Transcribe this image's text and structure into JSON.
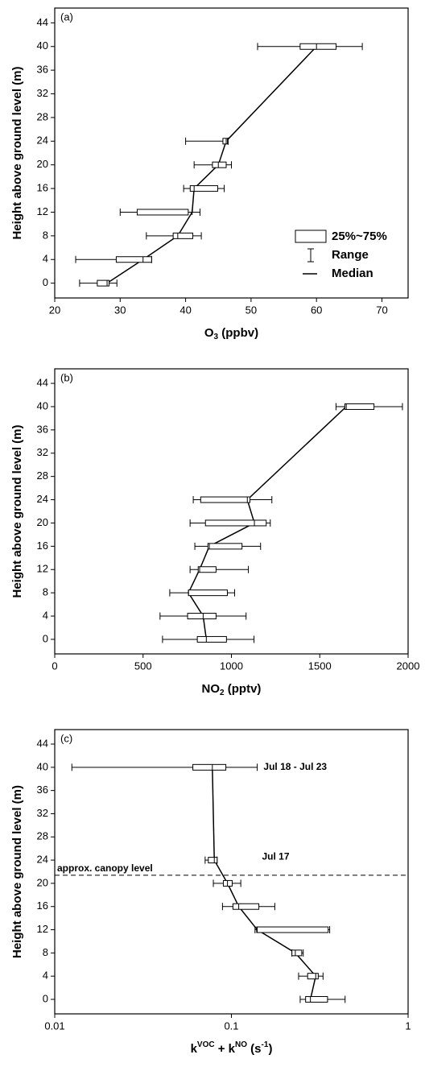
{
  "chart_data": [
    {
      "type": "boxplot",
      "panel_label": "(a)",
      "ylabel": "Height above ground level (m)",
      "xlabel": [
        {
          "text": "O"
        },
        {
          "text": "3",
          "shift": "sub"
        },
        {
          "text": " (ppbv)"
        }
      ],
      "xscale": "linear",
      "xlim": [
        20,
        74
      ],
      "xticks": [
        20,
        30,
        40,
        50,
        60,
        70
      ],
      "ylim": [
        -2.5,
        46.5
      ],
      "yticks": [
        0,
        4,
        8,
        12,
        16,
        20,
        24,
        28,
        32,
        36,
        40,
        44
      ],
      "color": "#000000",
      "y": [
        0,
        4,
        8,
        12,
        16,
        20,
        24,
        40
      ],
      "min": [
        23.8,
        23.2,
        34,
        30,
        39.7,
        41.3,
        40,
        51
      ],
      "q1": [
        26.5,
        29.4,
        38.1,
        32.6,
        40.7,
        44.1,
        45.7,
        57.5
      ],
      "median": [
        28,
        33.5,
        38.8,
        41,
        41.3,
        45,
        46.2,
        60
      ],
      "q3": [
        28.3,
        34.8,
        41.1,
        40.4,
        44.9,
        46.2,
        46.4,
        63
      ],
      "max": [
        29.5,
        34.8,
        42.4,
        42.2,
        45.9,
        47,
        46.5,
        67
      ],
      "legend": {
        "position": "lower right",
        "entries": [
          "25%~75%",
          "Range",
          "Median"
        ]
      }
    },
    {
      "type": "boxplot",
      "panel_label": "(b)",
      "ylabel": "Height above ground level (m)",
      "xlabel": [
        {
          "text": "NO"
        },
        {
          "text": "2",
          "shift": "sub"
        },
        {
          "text": " (pptv)"
        }
      ],
      "xscale": "linear",
      "xlim": [
        0,
        2000
      ],
      "xticks": [
        0,
        500,
        1000,
        1500,
        2000
      ],
      "ylim": [
        -2.5,
        46.5
      ],
      "yticks": [
        0,
        4,
        8,
        12,
        16,
        20,
        24,
        28,
        32,
        36,
        40,
        44
      ],
      "color": "#000000",
      "y": [
        0,
        4,
        8,
        12,
        16,
        20,
        24,
        40
      ],
      "min": [
        610,
        596,
        651,
        766,
        793,
        766,
        784,
        1592
      ],
      "q1": [
        807,
        752,
        757,
        812,
        867,
        853,
        826,
        1642
      ],
      "median": [
        858,
        840,
        757,
        820,
        875,
        1130,
        1090,
        1650
      ],
      "q3": [
        972,
        913,
        977,
        913,
        1060,
        1197,
        1105,
        1807
      ],
      "max": [
        1128,
        1083,
        1018,
        1096,
        1165,
        1220,
        1229,
        1968
      ]
    },
    {
      "type": "boxplot",
      "panel_label": "(c)",
      "ylabel": "Height above ground level (m)",
      "xlabel": [
        {
          "text": "k"
        },
        {
          "text": "VOC",
          "shift": "sup"
        },
        {
          "text": " + k"
        },
        {
          "text": "NO",
          "shift": "sup"
        },
        {
          "text": " (s"
        },
        {
          "text": "-1",
          "shift": "sup"
        },
        {
          "text": ")"
        }
      ],
      "xscale": "log",
      "xlim": [
        0.01,
        1
      ],
      "xticks": [
        0.01,
        0.1,
        1
      ],
      "ylim": [
        -2.5,
        46.5
      ],
      "yticks": [
        0,
        4,
        8,
        12,
        16,
        20,
        24,
        28,
        32,
        36,
        40,
        44
      ],
      "color": "#000000",
      "y": [
        0,
        4,
        8,
        12,
        16,
        20,
        24,
        40
      ],
      "min": [
        0.245,
        0.24,
        0.22,
        0.136,
        0.089,
        0.079,
        0.071,
        0.0125
      ],
      "q1": [
        0.263,
        0.27,
        0.22,
        0.139,
        0.102,
        0.09,
        0.074,
        0.0605
      ],
      "median": [
        0.28,
        0.3,
        0.23,
        0.14,
        0.11,
        0.095,
        0.08,
        0.078
      ],
      "q3": [
        0.35,
        0.31,
        0.25,
        0.353,
        0.143,
        0.101,
        0.083,
        0.093
      ],
      "max": [
        0.44,
        0.33,
        0.255,
        0.36,
        0.176,
        0.113,
        0.083,
        0.14
      ],
      "hline": {
        "y": 21.4,
        "label": "approx. canopy level",
        "style": "dashed"
      },
      "annotations": [
        {
          "text": "Jul 18 - Jul 23",
          "x": 0.152,
          "y": 40
        },
        {
          "text": "Jul 17",
          "x": 0.149,
          "y": 24.5
        }
      ]
    }
  ]
}
